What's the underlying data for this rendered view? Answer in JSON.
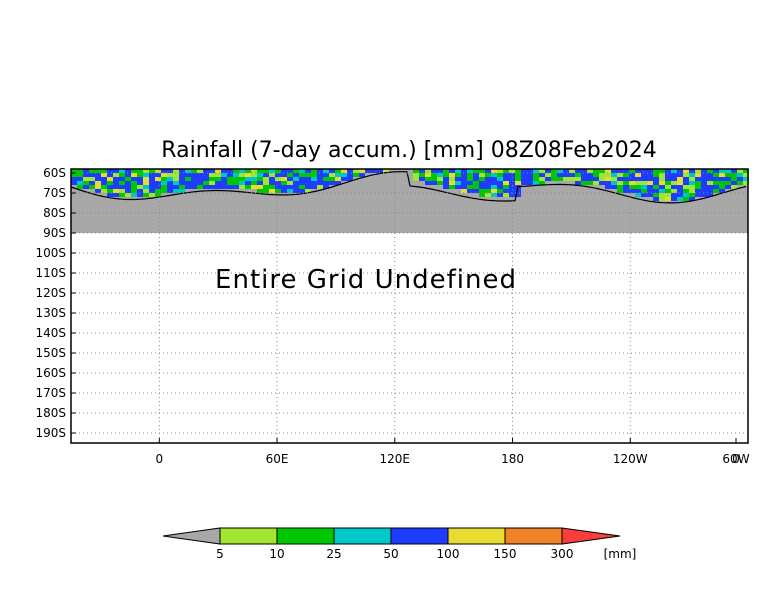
{
  "chart_data": {
    "type": "heatmap",
    "title": "Rainfall (7-day accum.) [mm] 08Z08Feb2024",
    "annotation": "Entire Grid Undefined",
    "x_ticks": [
      "0",
      "60E",
      "120E",
      "180",
      "120W",
      "60W",
      "0"
    ],
    "y_ticks": [
      "60S",
      "70S",
      "80S",
      "90S",
      "100S",
      "110S",
      "120S",
      "130S",
      "140S",
      "150S",
      "160S",
      "170S",
      "180S",
      "190S"
    ],
    "lon_range": [
      -45,
      300
    ],
    "lat_range": [
      -58,
      -195
    ],
    "data_lat_range": [
      -60,
      -90
    ],
    "grid": true,
    "legend": {
      "placement": "bottom",
      "unit": "[mm]",
      "levels": [
        "5",
        "10",
        "25",
        "50",
        "100",
        "150",
        "300"
      ],
      "colors": [
        "#a8a8a8",
        "#a0e632",
        "#00c800",
        "#00c8c8",
        "#1e3cff",
        "#e6dc32",
        "#f08228",
        "#fa3c3c"
      ]
    },
    "land_color": "#a8a8a8"
  }
}
